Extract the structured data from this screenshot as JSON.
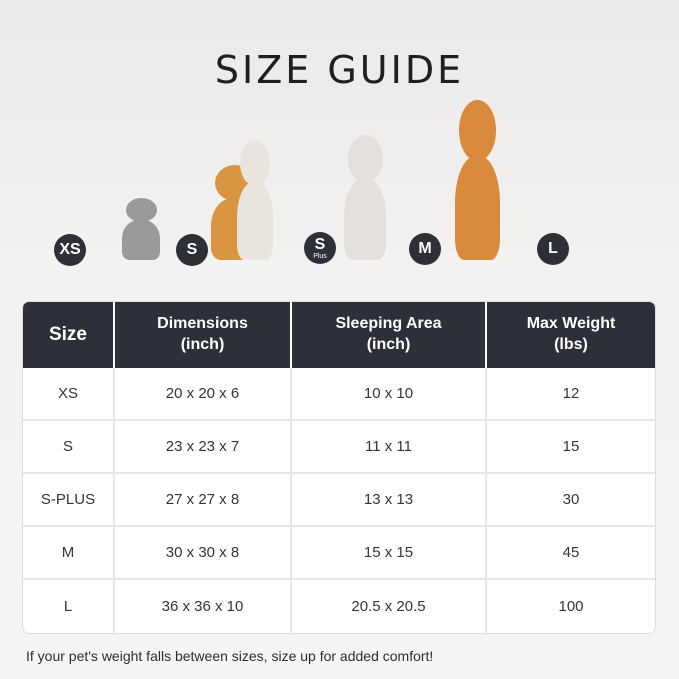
{
  "title": "SIZE GUIDE",
  "pets": [
    {
      "badge": "XS",
      "sub": "",
      "animal": "cat",
      "color": "#9a9a9c"
    },
    {
      "badge": "S",
      "sub": "",
      "animal": "pomeranian",
      "color": "#d9953f"
    },
    {
      "badge": "S",
      "sub": "Plus",
      "animal": "jack-russell",
      "color": "#e9e4de"
    },
    {
      "badge": "M",
      "sub": "",
      "animal": "french-bulldog",
      "color": "#e4e0dc"
    },
    {
      "badge": "L",
      "sub": "",
      "animal": "shiba-inu",
      "color": "#d98a3c"
    }
  ],
  "table": {
    "headers": [
      "Size",
      "Dimensions\n(inch)",
      "Sleeping Area\n(inch)",
      "Max Weight\n(lbs)"
    ],
    "rows": [
      [
        "XS",
        "20 x 20 x 6",
        "10 x 10",
        "12"
      ],
      [
        "S",
        "23 x 23 x 7",
        "11 x 11",
        "15"
      ],
      [
        "S-PLUS",
        "27 x 27 x 8",
        "13 x 13",
        "30"
      ],
      [
        "M",
        "30 x 30 x 8",
        "15 x 15",
        "45"
      ],
      [
        "L",
        "36 x 36 x 10",
        "20.5 x 20.5",
        "100"
      ]
    ]
  },
  "note": "If your pet's weight falls between sizes, size up for added comfort!",
  "colors": {
    "header": "#2e3038",
    "badge": "#2e3038"
  }
}
